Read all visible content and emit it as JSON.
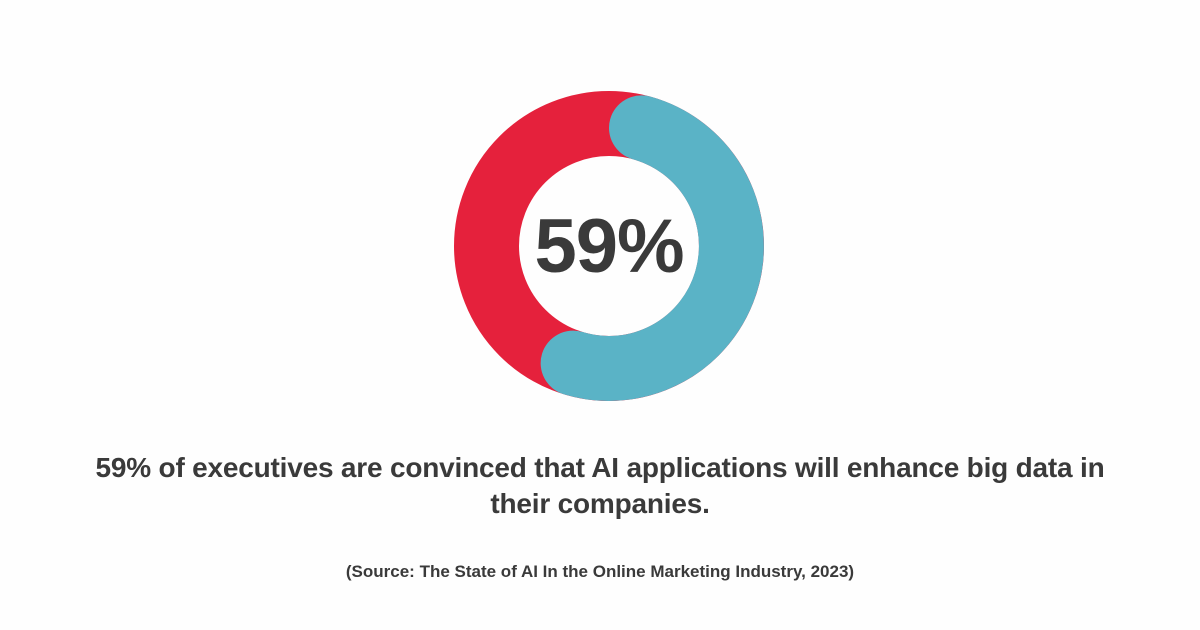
{
  "page": {
    "background_color": "#FEFEFE",
    "text_color": "#3A3A3A"
  },
  "chart_data": {
    "type": "pie",
    "subtype": "donut",
    "title": "",
    "center_label": "59%",
    "center_label_color": "#3A3A3A",
    "segments": [
      {
        "name": "executives-convinced",
        "value": 59,
        "color": "#5AB3C6"
      },
      {
        "name": "remainder",
        "value": 41,
        "color": "#E5213C"
      }
    ],
    "start_angle_deg": 0,
    "rounded_caps": true,
    "legend_position": "none",
    "outer_radius_px": 155,
    "ring_thickness_px": 65
  },
  "caption": {
    "text": "59% of executives are convinced that AI applications will enhance big data in their companies."
  },
  "source": {
    "text": "(Source: The State of AI In the Online Marketing Industry, 2023)"
  }
}
